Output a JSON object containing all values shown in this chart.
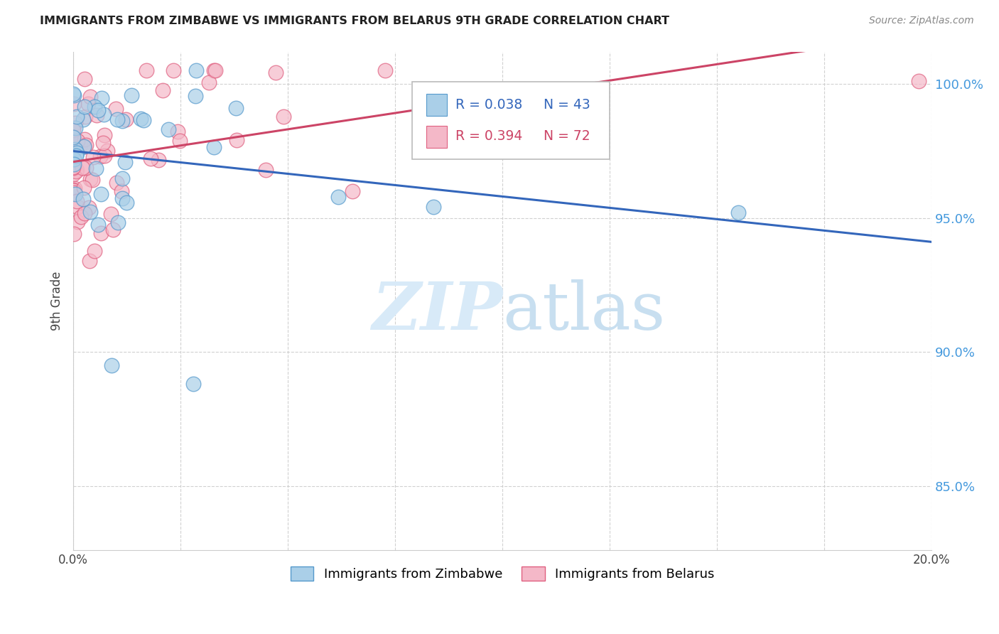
{
  "title": "IMMIGRANTS FROM ZIMBABWE VS IMMIGRANTS FROM BELARUS 9TH GRADE CORRELATION CHART",
  "source": "Source: ZipAtlas.com",
  "ylabel": "9th Grade",
  "xlim": [
    0.0,
    0.2
  ],
  "ylim": [
    0.826,
    1.012
  ],
  "yticks": [
    0.85,
    0.9,
    0.95,
    1.0
  ],
  "ytick_labels": [
    "85.0%",
    "90.0%",
    "95.0%",
    "100.0%"
  ],
  "xtick_positions": [
    0.0,
    0.025,
    0.05,
    0.075,
    0.1,
    0.125,
    0.15,
    0.175,
    0.2
  ],
  "xtick_labels": [
    "0.0%",
    "",
    "",
    "",
    "",
    "",
    "",
    "",
    "20.0%"
  ],
  "legend_r_zimbabwe": "0.038",
  "legend_n_zimbabwe": "43",
  "legend_r_belarus": "0.394",
  "legend_n_belarus": "72",
  "color_zimbabwe": "#aacfe8",
  "color_belarus": "#f4b8c8",
  "edge_color_zimbabwe": "#5599cc",
  "edge_color_belarus": "#e06080",
  "trendline_color_zimbabwe": "#3366bb",
  "trendline_color_belarus": "#cc4466",
  "watermark_color": "#d8eaf8",
  "background_color": "#ffffff",
  "grid_color": "#cccccc",
  "ytick_color": "#4499dd",
  "title_color": "#222222",
  "source_color": "#888888"
}
